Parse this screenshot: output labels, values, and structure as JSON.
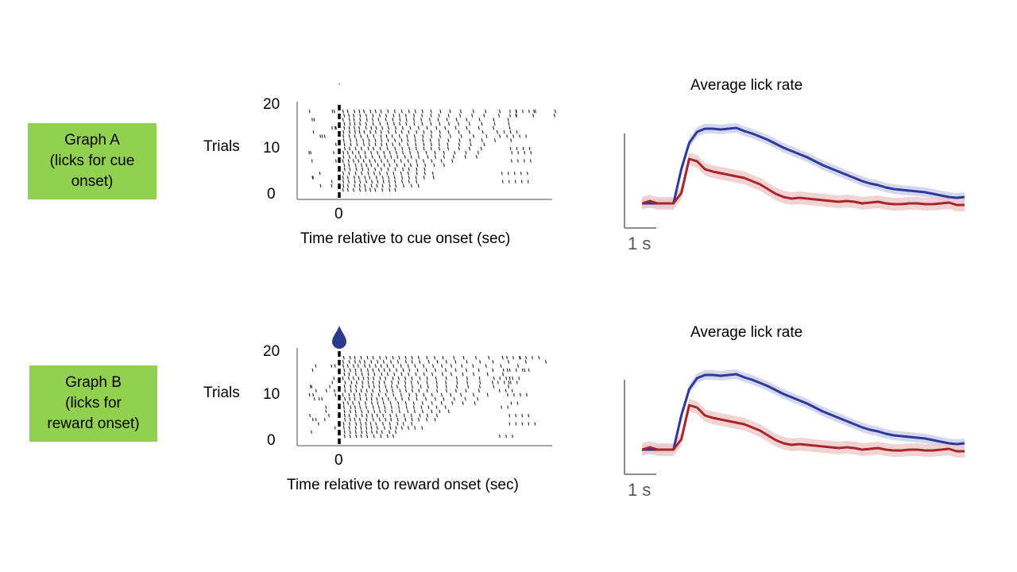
{
  "colors": {
    "label_bg": "#92d050",
    "blue_series": "#2e3a9a",
    "blue_band": "#c9cdea",
    "red_series": "#a8262b",
    "red_band": "#efc8c8",
    "drop": "#2b3a8f"
  },
  "graph_labels": {
    "a": "Graph A\n(licks for cue\nonset)",
    "b": "Graph B\n(licks for\nreward onset)"
  },
  "chart_data": [
    {
      "type": "scatter",
      "subtype": "raster",
      "title": "",
      "ylabel": "Trials",
      "xlabel": "Time relative to cue onset (sec)",
      "ylim": [
        0,
        20
      ],
      "yticks": [
        "20",
        "10",
        "0"
      ],
      "xticks": [
        "0"
      ],
      "marker_line_at": 0,
      "marker_line_style": "dashed",
      "trials": 20,
      "description_values": "lick times per trial: sparse before 0, dense burst after 0 decaying over time"
    },
    {
      "type": "line",
      "title": "Average lick rate",
      "scale_bar": "1 s",
      "series": [
        {
          "color": "blue",
          "values": [
            0.02,
            0.02,
            0.02,
            0.02,
            0.02,
            0.45,
            0.78,
            0.92,
            0.96,
            0.96,
            0.95,
            0.96,
            0.97,
            0.93,
            0.9,
            0.86,
            0.82,
            0.77,
            0.72,
            0.68,
            0.64,
            0.6,
            0.55,
            0.5,
            0.46,
            0.42,
            0.38,
            0.34,
            0.3,
            0.27,
            0.25,
            0.22,
            0.2,
            0.19,
            0.18,
            0.17,
            0.16,
            0.14,
            0.12,
            0.1,
            0.09,
            0.1
          ]
        },
        {
          "color": "red",
          "values": [
            0.02,
            0.05,
            0.02,
            0.02,
            0.02,
            0.15,
            0.58,
            0.55,
            0.45,
            0.42,
            0.4,
            0.38,
            0.36,
            0.34,
            0.3,
            0.26,
            0.2,
            0.14,
            0.1,
            0.08,
            0.09,
            0.08,
            0.07,
            0.06,
            0.05,
            0.04,
            0.05,
            0.04,
            0.02,
            0.03,
            0.04,
            0.02,
            0.01,
            0.01,
            0.02,
            0.02,
            0.01,
            0.01,
            0.02,
            0.03,
            0.0,
            0.0
          ]
        }
      ]
    },
    {
      "type": "scatter",
      "subtype": "raster",
      "title": "",
      "ylabel": "Trials",
      "xlabel": "Time relative to reward onset (sec)",
      "ylim": [
        0,
        20
      ],
      "yticks": [
        "20",
        "10",
        "0"
      ],
      "xticks": [
        "0"
      ],
      "marker_line_at": 0,
      "marker_line_style": "dashed",
      "trials": 20,
      "marker_icon": "water-drop-icon"
    },
    {
      "type": "line",
      "title": "Average lick rate",
      "scale_bar": "1 s",
      "series": [
        {
          "color": "blue",
          "values": [
            0.02,
            0.02,
            0.02,
            0.02,
            0.02,
            0.45,
            0.78,
            0.92,
            0.96,
            0.96,
            0.95,
            0.96,
            0.97,
            0.93,
            0.9,
            0.86,
            0.82,
            0.77,
            0.72,
            0.68,
            0.64,
            0.6,
            0.55,
            0.5,
            0.46,
            0.42,
            0.38,
            0.34,
            0.3,
            0.27,
            0.25,
            0.22,
            0.2,
            0.19,
            0.18,
            0.17,
            0.16,
            0.14,
            0.12,
            0.1,
            0.09,
            0.1
          ]
        },
        {
          "color": "red",
          "values": [
            0.02,
            0.05,
            0.02,
            0.02,
            0.02,
            0.15,
            0.58,
            0.55,
            0.45,
            0.42,
            0.4,
            0.38,
            0.36,
            0.34,
            0.3,
            0.26,
            0.2,
            0.14,
            0.1,
            0.08,
            0.09,
            0.08,
            0.07,
            0.06,
            0.05,
            0.04,
            0.05,
            0.04,
            0.02,
            0.03,
            0.04,
            0.02,
            0.01,
            0.01,
            0.02,
            0.02,
            0.01,
            0.01,
            0.02,
            0.03,
            0.0,
            0.0
          ]
        }
      ]
    }
  ]
}
